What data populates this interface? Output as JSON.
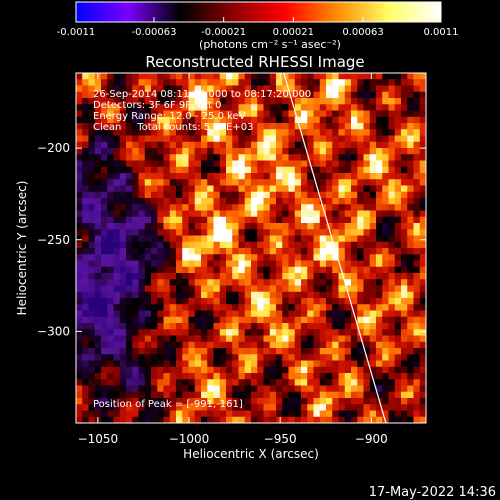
{
  "window": {
    "timestamp": "17-May-2022 14:36"
  },
  "colorbar": {
    "ticks": [
      "-0.0011",
      "-0.00063",
      "-0.00021",
      "0.00021",
      "0.00063",
      "0.0011"
    ],
    "tick_values": [
      -0.0011,
      -0.00063,
      -0.00021,
      0.00021,
      0.00063,
      0.0011
    ],
    "range": [
      -0.0011,
      0.0011
    ],
    "units_label": "(photons cm⁻² s⁻¹ asec⁻²)",
    "colors": [
      "#0000ff",
      "#7a00ff",
      "#000000",
      "#8b0000",
      "#ff0000",
      "#ff8c00",
      "#ffff66",
      "#ffffff"
    ]
  },
  "chart_data": {
    "type": "heatmap",
    "title": "Reconstructed RHESSI Image",
    "xlabel": "Heliocentric X (arcsec)",
    "ylabel": "Heliocentric Y (arcsec)",
    "xlim": [
      -1062,
      -870
    ],
    "ylim": [
      -350,
      -159
    ],
    "xticks": [
      -1050,
      -1000,
      -950,
      -900
    ],
    "xtick_labels": [
      "−1050",
      "−1000",
      "−950",
      "−900"
    ],
    "yticks": [
      -200,
      -250,
      -300
    ],
    "ytick_labels": [
      "−200",
      "−250",
      "−300"
    ],
    "annotations": [
      "26-Sep-2014 08:11:20.000 to 08:17:20.000",
      "Detectors: 3F 6F 9F, Att 0",
      "Energy Range: 12.0 - 25.0 keV",
      "Clean     Total counts: 5.59E+03"
    ],
    "peak_label": "Position of Peak = [-991,-161]",
    "limb_line": [
      [
        -948,
        -159
      ],
      [
        -892,
        -350
      ]
    ],
    "grid": false
  }
}
